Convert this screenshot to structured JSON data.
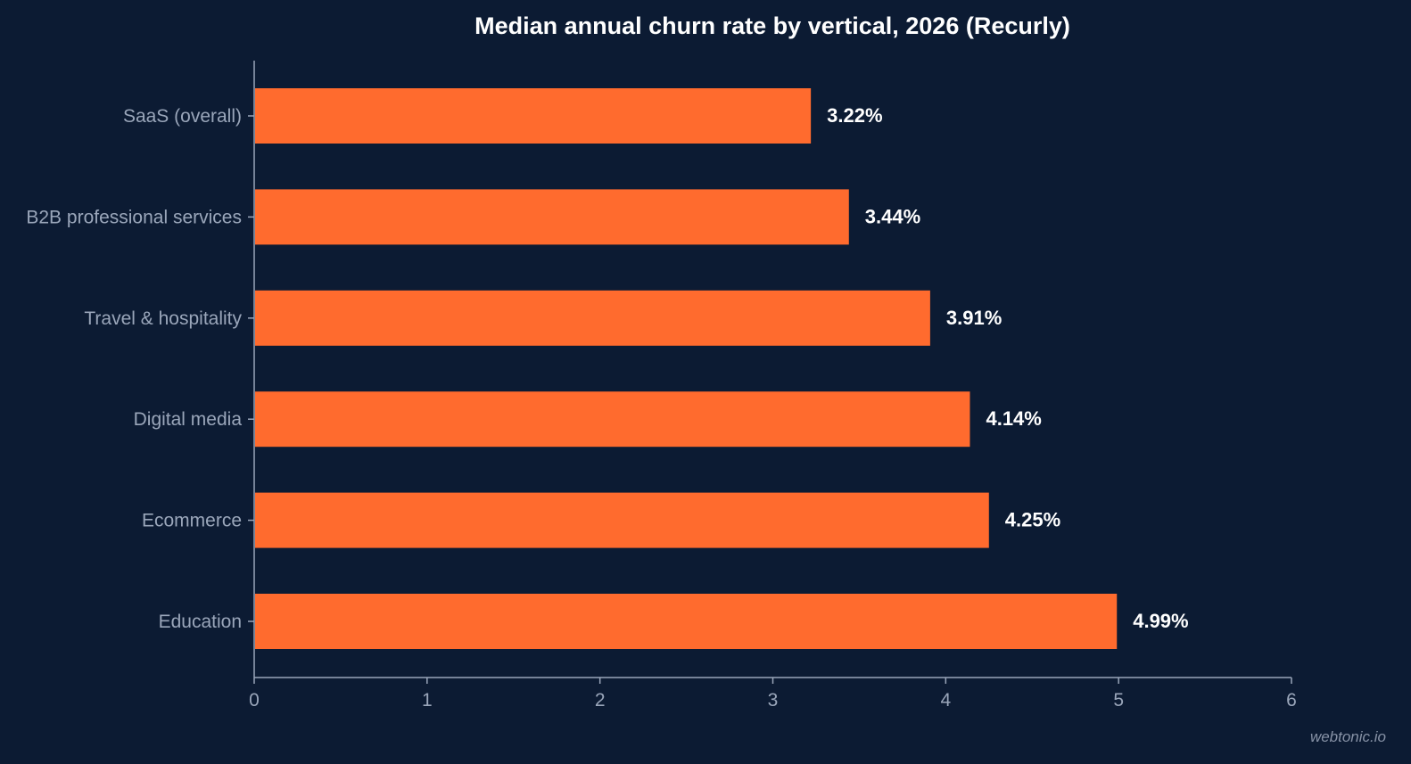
{
  "chart_data": {
    "type": "bar",
    "orientation": "horizontal",
    "title": "Median annual churn rate by vertical, 2026 (Recurly)",
    "xlabel": "",
    "ylabel": "",
    "categories": [
      "SaaS (overall)",
      "B2B professional services",
      "Travel & hospitality",
      "Digital media",
      "Ecommerce",
      "Education"
    ],
    "values": [
      3.22,
      3.44,
      3.91,
      4.14,
      4.25,
      4.99
    ],
    "value_labels": [
      "3.22%",
      "3.44%",
      "3.91%",
      "4.14%",
      "4.25%",
      "4.99%"
    ],
    "xlim": [
      0,
      6
    ],
    "x_ticks": [
      "0",
      "1",
      "2",
      "3",
      "4",
      "5",
      "6"
    ],
    "grid": false,
    "legend": "none",
    "bar_color": "#ff6b2e"
  },
  "watermark": "webtonic.io"
}
